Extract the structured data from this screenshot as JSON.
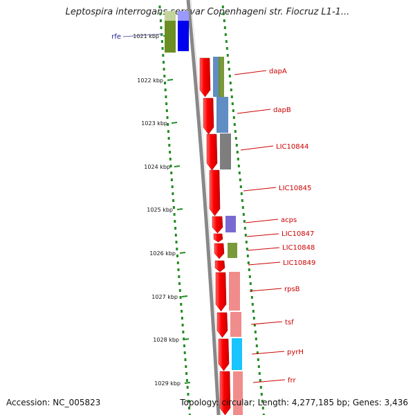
{
  "title": "Leptospira interrogans serovar Copenhageni str. Fiocruz L1-1...",
  "footer": {
    "accession": "Accession: NC_005823",
    "topology": "Topology: circular; Length: 4,277,185 bp; Genes: 3,436"
  },
  "ruler": [
    {
      "label": "1021 kbp"
    },
    {
      "label": "1022 kbp"
    },
    {
      "label": "1023 kbp"
    },
    {
      "label": "1024 kbp"
    },
    {
      "label": "1025 kbp"
    },
    {
      "label": "1026 kbp"
    },
    {
      "label": "1027 kbp"
    },
    {
      "label": "1028 kbp"
    },
    {
      "label": "1029 kbp"
    }
  ],
  "genes": [
    {
      "name": "rfe",
      "label_color": "#1a1a8c",
      "cog_color": "#0000ee"
    },
    {
      "name": "dapA",
      "label_color": "#cc0000",
      "cog_color": "#6b8e23"
    },
    {
      "name": "dapB",
      "label_color": "#cc0000",
      "cog_color": "#4f81bd"
    },
    {
      "name": "LIC10844",
      "label_color": "#cc0000",
      "cog_color": "#707070"
    },
    {
      "name": "LIC10845",
      "label_color": "#cc0000",
      "cog_color": ""
    },
    {
      "name": "acps",
      "label_color": "#cc0000",
      "cog_color": "#6a5acd"
    },
    {
      "name": "LIC10847",
      "label_color": "#cc0000",
      "cog_color": ""
    },
    {
      "name": "LIC10848",
      "label_color": "#cc0000",
      "cog_color": "#6b8e23"
    },
    {
      "name": "LIC10849",
      "label_color": "#cc0000",
      "cog_color": ""
    },
    {
      "name": "rpsB",
      "label_color": "#cc0000",
      "cog_color": "#f08080"
    },
    {
      "name": "tsf",
      "label_color": "#cc0000",
      "cog_color": "#f08080"
    },
    {
      "name": "pyrH",
      "label_color": "#cc0000",
      "cog_color": "#00bfff"
    },
    {
      "name": "frr",
      "label_color": "#cc0000",
      "cog_color": "#f08080"
    }
  ],
  "colors": {
    "cds": "#ff0000",
    "gc_skew": "#228b22",
    "backbone": "#888888",
    "rfe_outer": "#6b8e23"
  }
}
